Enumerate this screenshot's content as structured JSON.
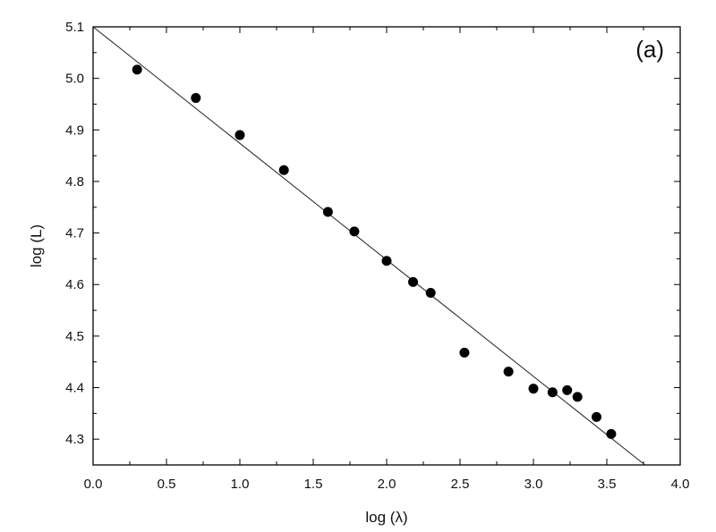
{
  "chart_data": {
    "type": "scatter",
    "panel_label": "(a)",
    "xlabel": "log (λ)",
    "ylabel": "log (L)",
    "xlim": [
      0.0,
      4.0
    ],
    "ylim": [
      4.25,
      5.1
    ],
    "x_ticks": [
      "0.0",
      "0.5",
      "1.0",
      "1.5",
      "2.0",
      "2.5",
      "3.0",
      "3.5",
      "4.0"
    ],
    "y_ticks": [
      "4.3",
      "4.4",
      "4.5",
      "4.6",
      "4.7",
      "4.8",
      "4.9",
      "5.0",
      "5.1"
    ],
    "grid": false,
    "legend": "none",
    "series": [
      {
        "points": [
          {
            "x": 0.3,
            "y": 5.017
          },
          {
            "x": 0.7,
            "y": 4.962
          },
          {
            "x": 1.0,
            "y": 4.89
          },
          {
            "x": 1.3,
            "y": 4.822
          },
          {
            "x": 1.6,
            "y": 4.741
          },
          {
            "x": 1.78,
            "y": 4.703
          },
          {
            "x": 2.0,
            "y": 4.646
          },
          {
            "x": 2.18,
            "y": 4.605
          },
          {
            "x": 2.3,
            "y": 4.584
          },
          {
            "x": 2.53,
            "y": 4.468
          },
          {
            "x": 2.83,
            "y": 4.431
          },
          {
            "x": 3.0,
            "y": 4.398
          },
          {
            "x": 3.13,
            "y": 4.391
          },
          {
            "x": 3.23,
            "y": 4.395
          },
          {
            "x": 3.3,
            "y": 4.382
          },
          {
            "x": 3.43,
            "y": 4.343
          },
          {
            "x": 3.53,
            "y": 4.31
          }
        ]
      }
    ],
    "fit_line": {
      "x": [
        0.0,
        3.76
      ],
      "y": [
        5.1,
        4.25
      ]
    }
  }
}
